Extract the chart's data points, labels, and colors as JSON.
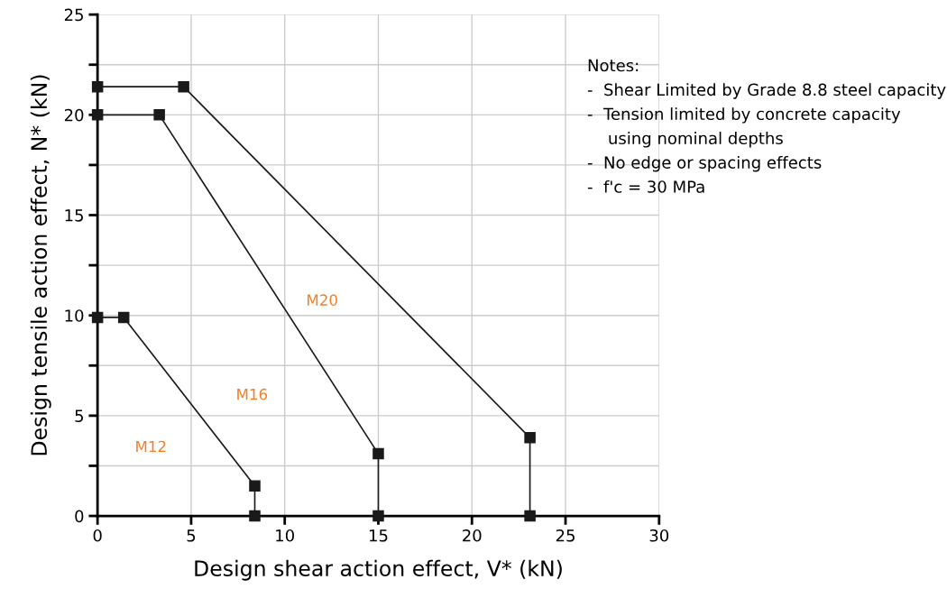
{
  "chart_data": {
    "type": "line",
    "xlabel": "Design shear action effect, V* (kN)",
    "ylabel": "Design tensile action effect, N* (kN)",
    "series": [
      {
        "color": "#1a1a1a",
        "x": [
          0,
          4.6,
          23.1,
          23.1
        ],
        "values": [
          21.4,
          21.4,
          3.9,
          0
        ]
      },
      {
        "color": "#1a1a1a",
        "x": [
          0,
          3.3,
          15.0,
          15.0
        ],
        "values": [
          20,
          20,
          3.1,
          0
        ]
      },
      {
        "color": "#1a1a1a",
        "x": [
          0,
          1.4,
          8.4,
          8.4
        ],
        "values": [
          9.9,
          9.9,
          1.5,
          0
        ]
      }
    ],
    "marker": "square",
    "line_style": "solid",
    "grid": true,
    "xlim": [
      0,
      30
    ],
    "xticks": [
      0,
      5,
      10,
      15,
      20,
      25,
      30
    ],
    "ylim": [
      0,
      25
    ],
    "yticks": [
      0,
      {
        "value": 2.5,
        "label": null
      },
      5,
      {
        "value": 7.5,
        "label": null
      },
      10,
      {
        "value": 12.5,
        "label": null
      },
      15,
      {
        "value": 17.5,
        "label": null
      },
      20,
      {
        "value": 22.5,
        "label": null
      },
      25
    ],
    "annotations": [
      "M20",
      "M16",
      "M12",
      "Notes:",
      "-  Shear Limited by Grade 8.8 steel capacity",
      "-  Tension limited by concrete capacity",
      "    using nominal depths",
      "-  No edge or spacing effects",
      "-  f'c = 30 MPa"
    ]
  }
}
